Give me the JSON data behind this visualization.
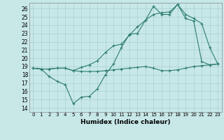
{
  "xlabel": "Humidex (Indice chaleur)",
  "ylabel": "",
  "background_color": "#c8e8e8",
  "line_color": "#2d7d6e",
  "xlim": [
    -0.5,
    23.5
  ],
  "ylim": [
    13.5,
    26.7
  ],
  "xticks": [
    0,
    1,
    2,
    3,
    4,
    5,
    6,
    7,
    8,
    9,
    10,
    11,
    12,
    13,
    14,
    15,
    16,
    17,
    18,
    19,
    20,
    21,
    22,
    23
  ],
  "yticks": [
    14,
    15,
    16,
    17,
    18,
    19,
    20,
    21,
    22,
    23,
    24,
    25,
    26
  ],
  "line1_x": [
    0,
    1,
    2,
    3,
    4,
    5,
    6,
    7,
    8,
    9,
    10,
    11,
    12,
    13,
    14,
    15,
    16,
    17,
    18,
    19,
    20,
    21,
    22,
    23
  ],
  "line1_y": [
    18.8,
    18.7,
    17.8,
    17.2,
    16.8,
    14.5,
    15.3,
    15.4,
    16.3,
    18.0,
    19.3,
    21.3,
    22.9,
    23.0,
    24.6,
    26.3,
    25.3,
    25.3,
    26.5,
    25.3,
    24.8,
    24.2,
    21.3,
    19.3
  ],
  "line2_x": [
    0,
    1,
    2,
    3,
    4,
    5,
    6,
    7,
    8,
    9,
    10,
    11,
    12,
    13,
    14,
    15,
    16,
    17,
    18,
    19,
    20,
    21,
    22,
    23
  ],
  "line2_y": [
    18.8,
    18.7,
    18.7,
    18.8,
    18.8,
    18.5,
    18.4,
    18.4,
    18.4,
    18.5,
    18.6,
    18.7,
    18.8,
    18.9,
    19.0,
    18.8,
    18.5,
    18.5,
    18.6,
    18.8,
    19.0,
    19.1,
    19.2,
    19.3
  ],
  "line3_x": [
    0,
    1,
    2,
    3,
    4,
    5,
    6,
    7,
    8,
    9,
    10,
    11,
    12,
    13,
    14,
    15,
    16,
    17,
    18,
    19,
    20,
    21,
    22,
    23
  ],
  "line3_y": [
    18.8,
    18.7,
    18.7,
    18.8,
    18.8,
    18.5,
    18.9,
    19.2,
    19.7,
    20.7,
    21.5,
    21.7,
    22.8,
    23.8,
    24.6,
    25.3,
    25.5,
    25.6,
    26.5,
    24.8,
    24.5,
    19.6,
    19.2,
    19.3
  ],
  "xtick_fontsize": 5,
  "ytick_fontsize": 5.5,
  "xlabel_fontsize": 6.5,
  "marker_size": 3,
  "line_width": 0.8,
  "grid_color": "#a0c8c8",
  "grid_linewidth": 0.4
}
